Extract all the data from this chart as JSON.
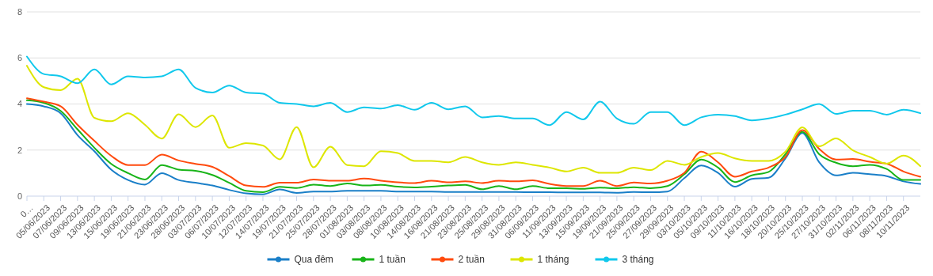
{
  "chart_data": {
    "type": "line",
    "categories": [
      "0…",
      "05/06/2023",
      "07/06/2023",
      "09/06/2023",
      "13/06/2023",
      "15/06/2023",
      "19/06/2023",
      "21/06/2023",
      "23/06/2023",
      "28/06/2023",
      "03/07/2023",
      "06/07/2023",
      "10/07/2023",
      "12/07/2023",
      "14/07/2023",
      "19/07/2023",
      "21/07/2023",
      "25/07/2023",
      "28/07/2023",
      "01/08/2023",
      "03/08/2023",
      "08/08/2023",
      "10/08/2023",
      "14/08/2023",
      "16/08/2023",
      "21/08/2023",
      "23/08/2023",
      "25/08/2023",
      "29/08/2023",
      "31/08/2023",
      "06/09/2023",
      "11/09/2023",
      "13/09/2023",
      "15/09/2023",
      "19/09/2023",
      "21/09/2023",
      "25/09/2023",
      "27/09/2023",
      "29/09/2023",
      "03/10/2023",
      "05/10/2023",
      "09/10/2023",
      "11/10/2023",
      "16/10/2023",
      "18/10/2023",
      "20/10/2023",
      "25/10/2023",
      "27/10/2023",
      "31/10/2023",
      "02/11/2023",
      "06/11/2023",
      "08/11/2023",
      "10/11/2023",
      null
    ],
    "series": [
      {
        "name": "Qua đêm",
        "color": "#1a7fc8",
        "values": [
          4.0,
          3.9,
          3.6,
          2.65,
          1.95,
          1.15,
          0.7,
          0.5,
          1.0,
          0.7,
          0.58,
          0.46,
          0.27,
          0.12,
          0.08,
          0.29,
          0.14,
          0.2,
          0.2,
          0.23,
          0.23,
          0.23,
          0.2,
          0.2,
          0.2,
          0.18,
          0.18,
          0.18,
          0.18,
          0.18,
          0.17,
          0.17,
          0.16,
          0.16,
          0.16,
          0.15,
          0.18,
          0.17,
          0.2,
          0.78,
          1.33,
          1.01,
          0.41,
          0.75,
          0.8,
          1.64,
          2.74,
          1.47,
          0.9,
          1.01,
          0.95,
          0.87,
          0.64,
          0.53
        ]
      },
      {
        "name": "1 tuần",
        "color": "#18b418",
        "values": [
          4.16,
          4.05,
          3.7,
          2.9,
          2.1,
          1.4,
          1.0,
          0.72,
          1.35,
          1.15,
          1.1,
          0.92,
          0.58,
          0.23,
          0.17,
          0.4,
          0.35,
          0.5,
          0.44,
          0.55,
          0.46,
          0.49,
          0.41,
          0.38,
          0.41,
          0.46,
          0.49,
          0.3,
          0.44,
          0.3,
          0.44,
          0.34,
          0.34,
          0.32,
          0.37,
          0.34,
          0.39,
          0.34,
          0.44,
          0.95,
          1.59,
          1.24,
          0.61,
          0.9,
          1.05,
          1.82,
          2.79,
          1.82,
          1.45,
          1.3,
          1.36,
          1.18,
          0.7,
          0.7
        ]
      },
      {
        "name": "2 tuần",
        "color": "#ff4a0d",
        "values": [
          4.25,
          4.1,
          3.9,
          3.1,
          2.4,
          1.75,
          1.35,
          1.35,
          1.8,
          1.55,
          1.4,
          1.27,
          0.87,
          0.46,
          0.4,
          0.58,
          0.58,
          0.72,
          0.67,
          0.67,
          0.76,
          0.67,
          0.6,
          0.57,
          0.67,
          0.6,
          0.64,
          0.57,
          0.67,
          0.64,
          0.69,
          0.53,
          0.44,
          0.44,
          0.67,
          0.44,
          0.59,
          0.55,
          0.67,
          1.01,
          1.93,
          1.47,
          0.84,
          1.07,
          1.24,
          1.7,
          2.87,
          2.05,
          1.59,
          1.61,
          1.49,
          1.41,
          1.07,
          0.84
        ]
      },
      {
        "name": "1 tháng",
        "color": "#dde600",
        "values": [
          5.66,
          4.73,
          4.6,
          5.1,
          3.4,
          3.25,
          3.6,
          3.1,
          2.5,
          3.55,
          3.0,
          3.5,
          2.1,
          2.3,
          2.2,
          1.6,
          3.0,
          1.25,
          2.15,
          1.35,
          1.3,
          1.95,
          1.87,
          1.53,
          1.53,
          1.47,
          1.7,
          1.47,
          1.36,
          1.47,
          1.36,
          1.24,
          1.07,
          1.24,
          1.01,
          1.01,
          1.24,
          1.13,
          1.53,
          1.36,
          1.7,
          1.87,
          1.64,
          1.53,
          1.53,
          1.93,
          2.99,
          2.16,
          2.51,
          1.99,
          1.7,
          1.41,
          1.76,
          1.3
        ]
      },
      {
        "name": "3 tháng",
        "color": "#10c8ec",
        "values": [
          6.06,
          5.3,
          5.2,
          4.9,
          5.5,
          4.85,
          5.2,
          5.15,
          5.2,
          5.5,
          4.7,
          4.5,
          4.8,
          4.5,
          4.45,
          4.05,
          4.0,
          3.9,
          4.05,
          3.65,
          3.85,
          3.8,
          3.95,
          3.75,
          4.05,
          3.77,
          3.9,
          3.42,
          3.48,
          3.37,
          3.37,
          3.08,
          3.65,
          3.33,
          4.1,
          3.37,
          3.14,
          3.65,
          3.65,
          3.08,
          3.42,
          3.54,
          3.48,
          3.29,
          3.37,
          3.54,
          3.77,
          4.0,
          3.57,
          3.71,
          3.71,
          3.54,
          3.75,
          3.6
        ]
      }
    ],
    "ylim": [
      0,
      8
    ],
    "yticks": [
      0,
      2,
      4,
      6,
      8
    ],
    "grid": "y",
    "legend": "bottom",
    "marker": "none",
    "line_style": "solid"
  }
}
